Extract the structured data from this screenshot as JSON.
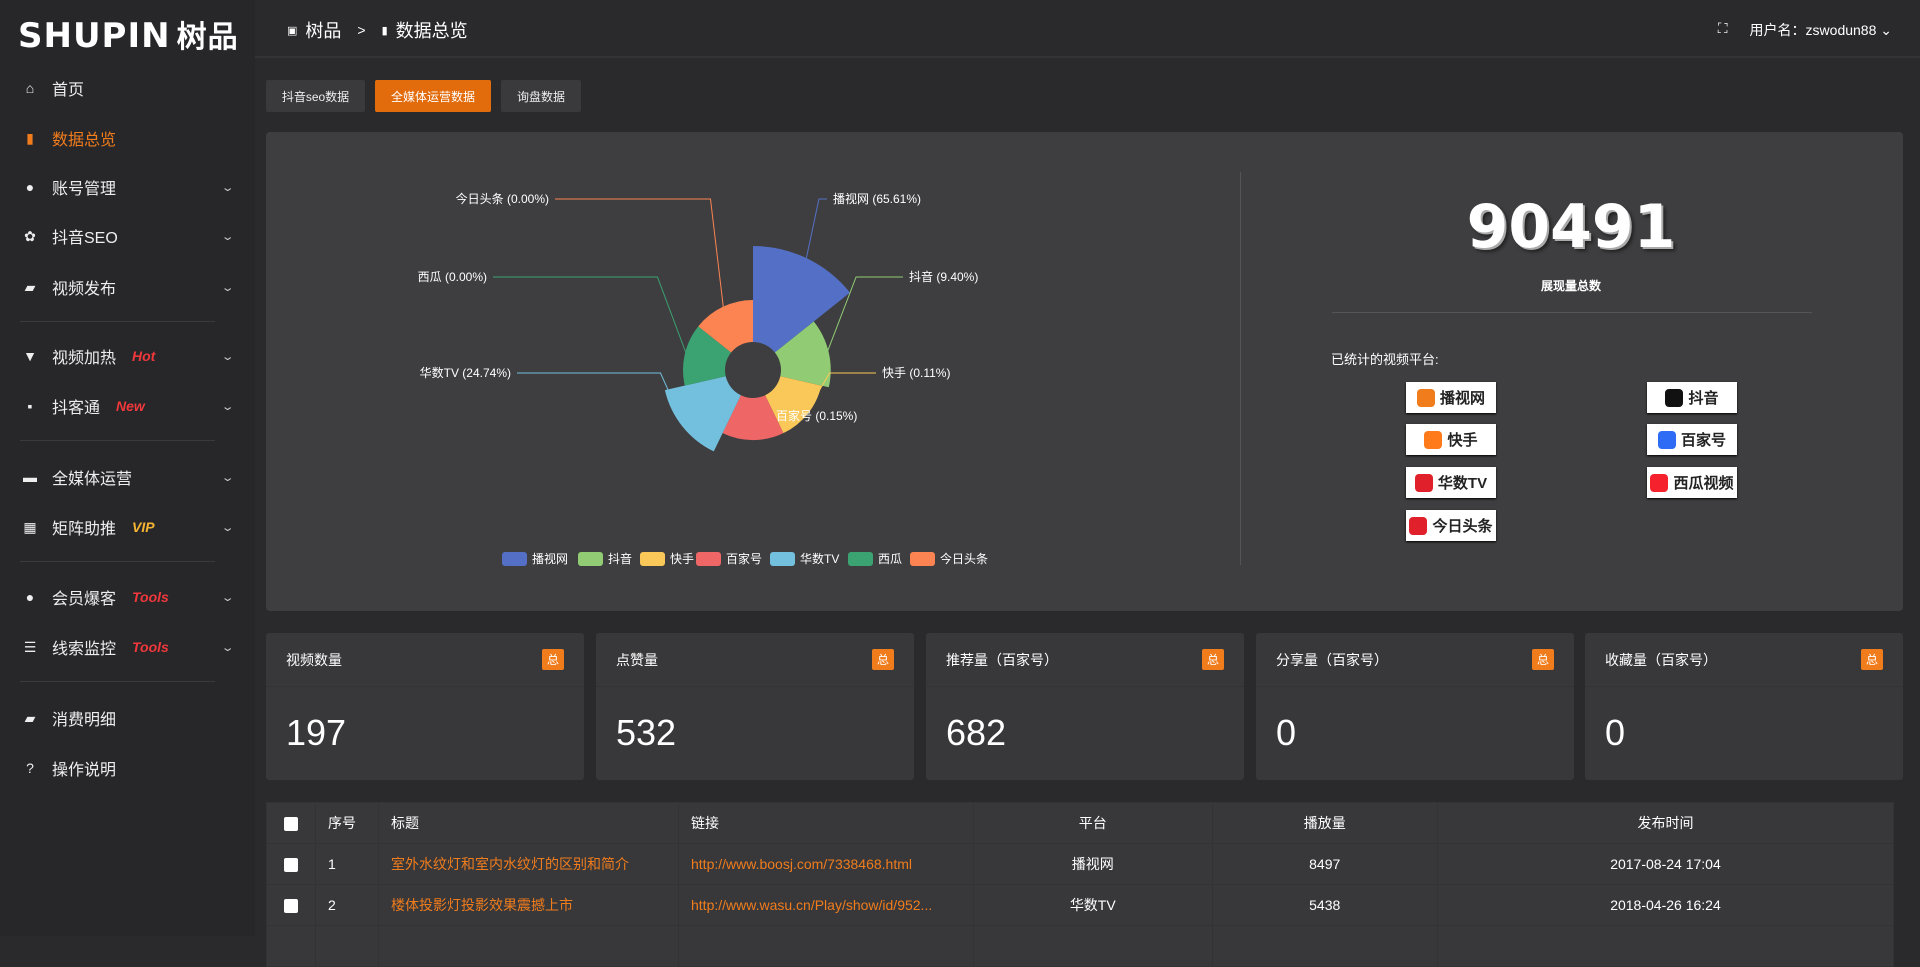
{
  "logo": {
    "en": "SHUPIN",
    "cn": "树品"
  },
  "sidebar": {
    "items": [
      {
        "label": "首页",
        "icon": "home-icon",
        "glyph": "⌂"
      },
      {
        "label": "数据总览",
        "icon": "bar-chart-icon",
        "glyph": "▮"
      },
      {
        "label": "账号管理",
        "icon": "user-icon",
        "glyph": "●"
      },
      {
        "label": "抖音SEO",
        "icon": "gear-icon",
        "glyph": "✿"
      },
      {
        "label": "视频发布",
        "icon": "camera-icon",
        "glyph": "▰"
      },
      {
        "label": "视频加热",
        "icon": "monitor-icon",
        "glyph": "▼",
        "tag": "Hot",
        "tag_color": "#f0383c"
      },
      {
        "label": "抖客通",
        "icon": "chat-icon",
        "glyph": "▪",
        "tag": "New",
        "tag_color": "#f0383c"
      },
      {
        "label": "全媒体运营",
        "icon": "desktop-icon",
        "glyph": "▬"
      },
      {
        "label": "矩阵助推",
        "icon": "grid-icon",
        "glyph": "▦",
        "tag": "VIP",
        "tag_color": "#f5b533"
      },
      {
        "label": "会员爆客",
        "icon": "user-icon",
        "glyph": "●",
        "tag": "Tools",
        "tag_color": "#f0383c"
      },
      {
        "label": "线索监控",
        "icon": "sliders-icon",
        "glyph": "☰",
        "tag": "Tools",
        "tag_color": "#f0383c"
      },
      {
        "label": "消费明细",
        "icon": "wallet-icon",
        "glyph": "▰"
      },
      {
        "label": "操作说明",
        "icon": "help-icon",
        "glyph": "?"
      }
    ]
  },
  "header": {
    "crumb_home": "树品",
    "crumb_sep": ">",
    "crumb_current": "数据总览",
    "user": "用户名：zswodun88"
  },
  "tabs": [
    "抖音seo数据",
    "全媒体运营数据",
    "询盘数据"
  ],
  "summary": {
    "total": "90491",
    "total_label": "展现量总数",
    "platforms_title": "已统计的视频平台:",
    "platform_logos": [
      {
        "name": "播视网",
        "color": "#f07c1c"
      },
      {
        "name": "抖音",
        "color": "#111"
      },
      {
        "name": "快手",
        "color": "#ff7a1a"
      },
      {
        "name": "百家号",
        "color": "#2f6cf6"
      },
      {
        "name": "华数TV",
        "color": "#e0202a"
      },
      {
        "name": "西瓜视频",
        "color": "#f5222d"
      },
      {
        "name": "今日头条",
        "color": "#e0202a"
      }
    ]
  },
  "chart_data": {
    "type": "pie",
    "rose": "radius",
    "legend_position": "bottom",
    "categories": [
      "播视网",
      "抖音",
      "快手",
      "百家号",
      "华数TV",
      "西瓜",
      "今日头条"
    ],
    "values": [
      65.61,
      9.4,
      0.11,
      0.15,
      24.74,
      0.0,
      0.0
    ],
    "colors": [
      "#5470c6",
      "#91cc75",
      "#fac858",
      "#ee6666",
      "#73c0de",
      "#3ba272",
      "#fc8452"
    ],
    "labels": [
      "播视网 (65.61%)",
      "抖音 (9.40%)",
      "快手 (0.11%)",
      "百家号 (0.15%)",
      "华数TV (24.74%)",
      "西瓜 (0.00%)",
      "今日头条 (0.00%)"
    ]
  },
  "cards": [
    {
      "title": "视频数量",
      "badge": "总",
      "value": "197"
    },
    {
      "title": "点赞量",
      "badge": "总",
      "value": "532"
    },
    {
      "title": "推荐量（百家号）",
      "badge": "总",
      "value": "682"
    },
    {
      "title": "分享量（百家号）",
      "badge": "总",
      "value": "0"
    },
    {
      "title": "收藏量（百家号）",
      "badge": "总",
      "value": "0"
    }
  ],
  "table": {
    "headers": [
      "序号",
      "标题",
      "链接",
      "平台",
      "播放量",
      "发布时间"
    ],
    "rows": [
      [
        "1",
        "室外水纹灯和室内水纹灯的区别和简介",
        "http://www.boosj.com/7338468.html",
        "播视网",
        "8497",
        "2017-08-24 17:04"
      ],
      [
        "2",
        "楼体投影灯投影效果震撼上市",
        "http://www.wasu.cn/Play/show/id/952...",
        "华数TV",
        "5438",
        "2018-04-26 16:24"
      ]
    ]
  }
}
